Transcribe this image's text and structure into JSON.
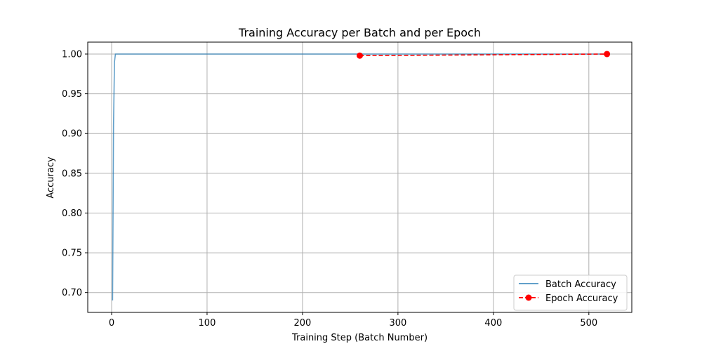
{
  "chart_data": {
    "type": "line",
    "title": "Training Accuracy per Batch and per Epoch",
    "xlabel": "Training Step (Batch Number)",
    "ylabel": "Accuracy",
    "xlim": [
      -25,
      545
    ],
    "ylim": [
      0.675,
      1.015
    ],
    "xticks": [
      0,
      100,
      200,
      300,
      400,
      500
    ],
    "yticks": [
      0.7,
      0.75,
      0.8,
      0.85,
      0.9,
      0.95,
      1.0
    ],
    "grid": true,
    "legend": "lower-right",
    "series": [
      {
        "name": "Batch Accuracy",
        "color": "#1f77b4",
        "style": "solid",
        "x": [
          1,
          2,
          3,
          4,
          5,
          10,
          50,
          100,
          200,
          300,
          400,
          500,
          520
        ],
        "y": [
          0.69,
          0.91,
          0.99,
          1.0,
          1.0,
          1.0,
          1.0,
          1.0,
          1.0,
          1.0,
          1.0,
          1.0,
          1.0
        ]
      },
      {
        "name": "Epoch Accuracy",
        "color": "#ff0000",
        "style": "dashed",
        "marker": "circle",
        "x": [
          260,
          519
        ],
        "y": [
          0.998,
          1.0
        ]
      }
    ]
  }
}
